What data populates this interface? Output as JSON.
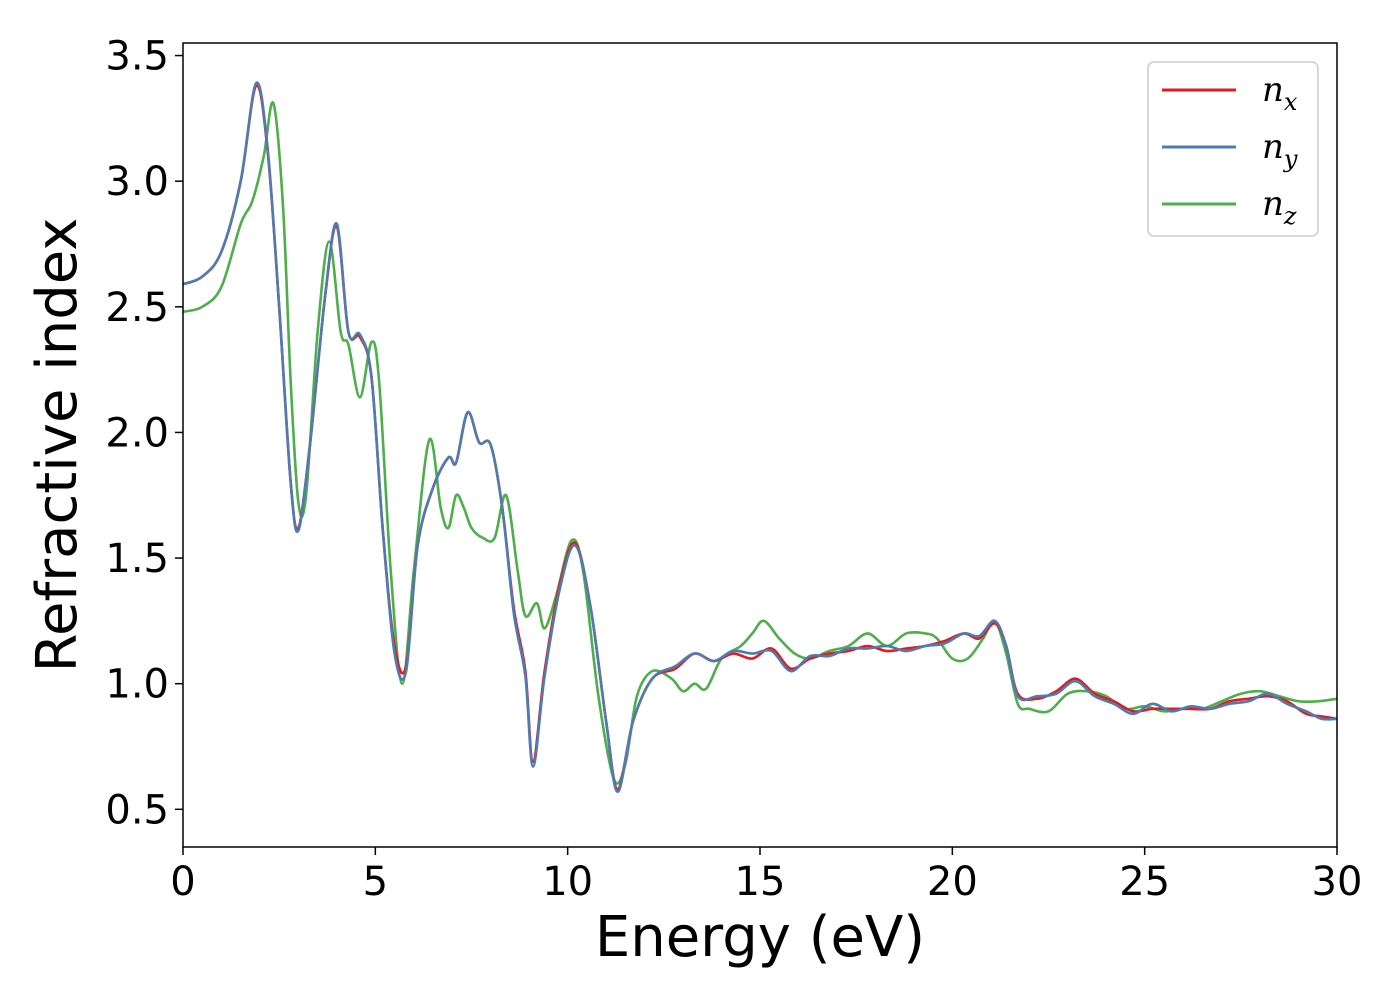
{
  "chart_data": {
    "type": "line",
    "title": "",
    "xlabel": "Energy (eV)",
    "ylabel": "Refractive index",
    "xlim": [
      0,
      30
    ],
    "ylim": [
      0.35,
      3.55
    ],
    "xticks": [
      0,
      5,
      10,
      15,
      20,
      25,
      30
    ],
    "yticks": [
      0.5,
      1.0,
      1.5,
      2.0,
      2.5,
      3.0,
      3.5
    ],
    "xtick_labels": [
      "0",
      "5",
      "10",
      "15",
      "20",
      "25",
      "30"
    ],
    "ytick_labels": [
      "0.5",
      "1.0",
      "1.5",
      "2.0",
      "2.5",
      "3.0",
      "3.5"
    ],
    "grid": false,
    "legend": "top-right",
    "series": [
      {
        "name": "n",
        "subscript": "x",
        "color": "#e41a1c",
        "points": [
          [
            0,
            2.59
          ],
          [
            0.5,
            2.62
          ],
          [
            1.0,
            2.72
          ],
          [
            1.5,
            3.0
          ],
          [
            1.9,
            3.38
          ],
          [
            2.2,
            3.12
          ],
          [
            2.5,
            2.5
          ],
          [
            2.8,
            1.8
          ],
          [
            3.0,
            1.62
          ],
          [
            3.3,
            1.95
          ],
          [
            3.7,
            2.55
          ],
          [
            4.0,
            2.82
          ],
          [
            4.3,
            2.4
          ],
          [
            4.6,
            2.38
          ],
          [
            4.9,
            2.22
          ],
          [
            5.2,
            1.6
          ],
          [
            5.5,
            1.15
          ],
          [
            5.8,
            1.07
          ],
          [
            6.1,
            1.55
          ],
          [
            6.5,
            1.78
          ],
          [
            6.9,
            1.9
          ],
          [
            7.1,
            1.88
          ],
          [
            7.4,
            2.08
          ],
          [
            7.7,
            1.96
          ],
          [
            8.0,
            1.95
          ],
          [
            8.3,
            1.7
          ],
          [
            8.6,
            1.3
          ],
          [
            8.9,
            1.05
          ],
          [
            9.1,
            0.69
          ],
          [
            9.4,
            1.05
          ],
          [
            9.8,
            1.4
          ],
          [
            10.2,
            1.56
          ],
          [
            10.6,
            1.3
          ],
          [
            11.0,
            0.85
          ],
          [
            11.3,
            0.58
          ],
          [
            11.7,
            0.85
          ],
          [
            12.2,
            1.02
          ],
          [
            12.8,
            1.06
          ],
          [
            13.3,
            1.12
          ],
          [
            13.8,
            1.09
          ],
          [
            14.3,
            1.12
          ],
          [
            14.8,
            1.1
          ],
          [
            15.3,
            1.14
          ],
          [
            15.8,
            1.06
          ],
          [
            16.3,
            1.1
          ],
          [
            16.8,
            1.12
          ],
          [
            17.3,
            1.13
          ],
          [
            17.8,
            1.15
          ],
          [
            18.3,
            1.13
          ],
          [
            18.8,
            1.14
          ],
          [
            19.3,
            1.15
          ],
          [
            19.8,
            1.17
          ],
          [
            20.3,
            1.2
          ],
          [
            20.7,
            1.18
          ],
          [
            21.1,
            1.24
          ],
          [
            21.4,
            1.15
          ],
          [
            21.7,
            0.96
          ],
          [
            22.2,
            0.94
          ],
          [
            22.7,
            0.97
          ],
          [
            23.2,
            1.02
          ],
          [
            23.7,
            0.96
          ],
          [
            24.2,
            0.93
          ],
          [
            24.7,
            0.89
          ],
          [
            25.2,
            0.9
          ],
          [
            25.7,
            0.9
          ],
          [
            26.2,
            0.9
          ],
          [
            26.7,
            0.9
          ],
          [
            27.2,
            0.93
          ],
          [
            27.7,
            0.94
          ],
          [
            28.2,
            0.95
          ],
          [
            28.7,
            0.93
          ],
          [
            29.2,
            0.88
          ],
          [
            29.6,
            0.87
          ],
          [
            30.0,
            0.86
          ]
        ]
      },
      {
        "name": "n",
        "subscript": "y",
        "color": "#4d7cb3",
        "points": [
          [
            0,
            2.59
          ],
          [
            0.5,
            2.62
          ],
          [
            1.0,
            2.72
          ],
          [
            1.5,
            3.0
          ],
          [
            1.9,
            3.39
          ],
          [
            2.2,
            3.13
          ],
          [
            2.5,
            2.5
          ],
          [
            2.8,
            1.8
          ],
          [
            3.0,
            1.61
          ],
          [
            3.3,
            1.95
          ],
          [
            3.7,
            2.55
          ],
          [
            4.0,
            2.83
          ],
          [
            4.3,
            2.4
          ],
          [
            4.6,
            2.39
          ],
          [
            4.9,
            2.22
          ],
          [
            5.2,
            1.6
          ],
          [
            5.5,
            1.12
          ],
          [
            5.8,
            1.05
          ],
          [
            6.1,
            1.55
          ],
          [
            6.5,
            1.78
          ],
          [
            6.9,
            1.9
          ],
          [
            7.1,
            1.88
          ],
          [
            7.4,
            2.08
          ],
          [
            7.7,
            1.96
          ],
          [
            8.0,
            1.95
          ],
          [
            8.3,
            1.7
          ],
          [
            8.6,
            1.28
          ],
          [
            8.9,
            1.03
          ],
          [
            9.1,
            0.67
          ],
          [
            9.4,
            1.03
          ],
          [
            9.8,
            1.38
          ],
          [
            10.2,
            1.55
          ],
          [
            10.6,
            1.3
          ],
          [
            11.0,
            0.85
          ],
          [
            11.3,
            0.57
          ],
          [
            11.7,
            0.85
          ],
          [
            12.2,
            1.02
          ],
          [
            12.8,
            1.07
          ],
          [
            13.3,
            1.12
          ],
          [
            13.8,
            1.09
          ],
          [
            14.3,
            1.13
          ],
          [
            14.8,
            1.12
          ],
          [
            15.3,
            1.13
          ],
          [
            15.8,
            1.05
          ],
          [
            16.3,
            1.11
          ],
          [
            16.8,
            1.11
          ],
          [
            17.3,
            1.14
          ],
          [
            17.8,
            1.14
          ],
          [
            18.3,
            1.15
          ],
          [
            18.8,
            1.13
          ],
          [
            19.3,
            1.15
          ],
          [
            19.8,
            1.16
          ],
          [
            20.3,
            1.2
          ],
          [
            20.7,
            1.19
          ],
          [
            21.1,
            1.25
          ],
          [
            21.4,
            1.15
          ],
          [
            21.7,
            0.95
          ],
          [
            22.2,
            0.95
          ],
          [
            22.7,
            0.96
          ],
          [
            23.2,
            1.01
          ],
          [
            23.7,
            0.95
          ],
          [
            24.2,
            0.92
          ],
          [
            24.7,
            0.88
          ],
          [
            25.2,
            0.92
          ],
          [
            25.7,
            0.89
          ],
          [
            26.2,
            0.91
          ],
          [
            26.7,
            0.9
          ],
          [
            27.2,
            0.92
          ],
          [
            27.7,
            0.93
          ],
          [
            28.2,
            0.96
          ],
          [
            28.7,
            0.92
          ],
          [
            29.2,
            0.89
          ],
          [
            29.6,
            0.86
          ],
          [
            30.0,
            0.86
          ]
        ]
      },
      {
        "name": "n",
        "subscript": "z",
        "color": "#4daf4a",
        "points": [
          [
            0,
            2.48
          ],
          [
            0.5,
            2.5
          ],
          [
            1.0,
            2.58
          ],
          [
            1.5,
            2.83
          ],
          [
            1.8,
            2.92
          ],
          [
            2.1,
            3.1
          ],
          [
            2.35,
            3.31
          ],
          [
            2.6,
            2.9
          ],
          [
            2.8,
            2.2
          ],
          [
            3.0,
            1.72
          ],
          [
            3.2,
            1.75
          ],
          [
            3.5,
            2.4
          ],
          [
            3.8,
            2.76
          ],
          [
            4.1,
            2.4
          ],
          [
            4.3,
            2.35
          ],
          [
            4.6,
            2.14
          ],
          [
            4.9,
            2.36
          ],
          [
            5.1,
            2.2
          ],
          [
            5.4,
            1.45
          ],
          [
            5.7,
            1.0
          ],
          [
            6.0,
            1.45
          ],
          [
            6.4,
            1.97
          ],
          [
            6.7,
            1.7
          ],
          [
            6.9,
            1.62
          ],
          [
            7.1,
            1.75
          ],
          [
            7.3,
            1.7
          ],
          [
            7.5,
            1.62
          ],
          [
            7.8,
            1.58
          ],
          [
            8.1,
            1.58
          ],
          [
            8.4,
            1.75
          ],
          [
            8.7,
            1.45
          ],
          [
            8.9,
            1.27
          ],
          [
            9.2,
            1.32
          ],
          [
            9.4,
            1.22
          ],
          [
            9.7,
            1.35
          ],
          [
            10.1,
            1.57
          ],
          [
            10.4,
            1.45
          ],
          [
            10.8,
            0.95
          ],
          [
            11.2,
            0.62
          ],
          [
            11.5,
            0.68
          ],
          [
            11.8,
            0.95
          ],
          [
            12.2,
            1.05
          ],
          [
            12.7,
            1.02
          ],
          [
            13.0,
            0.97
          ],
          [
            13.3,
            1.0
          ],
          [
            13.6,
            0.98
          ],
          [
            14.0,
            1.1
          ],
          [
            14.5,
            1.15
          ],
          [
            14.8,
            1.2
          ],
          [
            15.1,
            1.25
          ],
          [
            15.5,
            1.18
          ],
          [
            15.9,
            1.12
          ],
          [
            16.3,
            1.1
          ],
          [
            16.8,
            1.13
          ],
          [
            17.3,
            1.15
          ],
          [
            17.8,
            1.2
          ],
          [
            18.3,
            1.15
          ],
          [
            18.8,
            1.2
          ],
          [
            19.3,
            1.2
          ],
          [
            19.6,
            1.18
          ],
          [
            20.0,
            1.1
          ],
          [
            20.4,
            1.1
          ],
          [
            20.8,
            1.18
          ],
          [
            21.1,
            1.25
          ],
          [
            21.4,
            1.12
          ],
          [
            21.7,
            0.92
          ],
          [
            22.0,
            0.9
          ],
          [
            22.5,
            0.89
          ],
          [
            23.0,
            0.96
          ],
          [
            23.5,
            0.97
          ],
          [
            24.0,
            0.95
          ],
          [
            24.5,
            0.9
          ],
          [
            25.0,
            0.91
          ],
          [
            25.5,
            0.89
          ],
          [
            26.0,
            0.9
          ],
          [
            26.5,
            0.9
          ],
          [
            27.0,
            0.93
          ],
          [
            27.5,
            0.96
          ],
          [
            28.0,
            0.97
          ],
          [
            28.5,
            0.95
          ],
          [
            29.0,
            0.93
          ],
          [
            29.5,
            0.93
          ],
          [
            30.0,
            0.94
          ]
        ]
      }
    ]
  }
}
